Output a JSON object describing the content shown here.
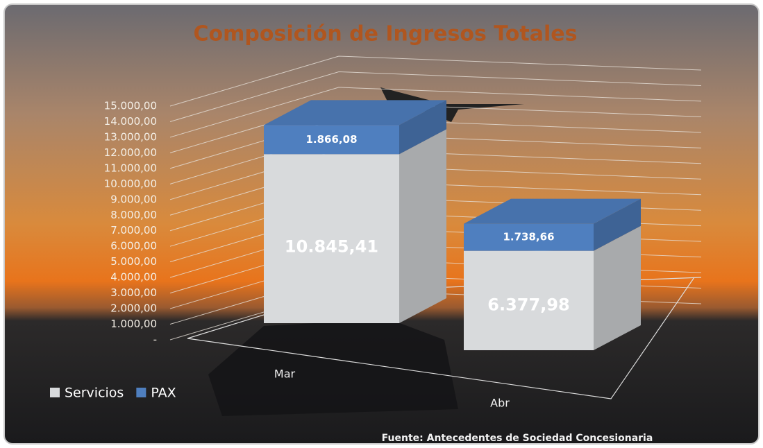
{
  "chart_data": {
    "type": "bar",
    "stacked": true,
    "title": "Composición de Ingresos Totales",
    "source": "Fuente: Antecedentes de Sociedad Concesionaria",
    "categories": [
      "Mar",
      "Abr"
    ],
    "series": [
      {
        "name": "Servicios",
        "color": "#d8dadc",
        "values": [
          10845.41,
          6377.98
        ],
        "value_labels": [
          "10.845,41",
          "6.377,98"
        ]
      },
      {
        "name": "PAX",
        "color": "#4f7fbf",
        "values": [
          1866.08,
          1738.66
        ],
        "value_labels": [
          "1.866,08",
          "1.738,66"
        ]
      }
    ],
    "ylim": [
      0,
      15000
    ],
    "yticks": [
      {
        "value": 0,
        "label": "-"
      },
      {
        "value": 1000,
        "label": "1.000,00"
      },
      {
        "value": 2000,
        "label": "2.000,00"
      },
      {
        "value": 3000,
        "label": "3.000,00"
      },
      {
        "value": 4000,
        "label": "4.000,00"
      },
      {
        "value": 5000,
        "label": "5.000,00"
      },
      {
        "value": 6000,
        "label": "6.000,00"
      },
      {
        "value": 7000,
        "label": "7.000,00"
      },
      {
        "value": 8000,
        "label": "8.000,00"
      },
      {
        "value": 9000,
        "label": "9.000,00"
      },
      {
        "value": 10000,
        "label": "10.000,00"
      },
      {
        "value": 11000,
        "label": "11.000,00"
      },
      {
        "value": 12000,
        "label": "12.000,00"
      },
      {
        "value": 13000,
        "label": "13.000,00"
      },
      {
        "value": 14000,
        "label": "14.000,00"
      },
      {
        "value": 15000,
        "label": "15.000,00"
      }
    ],
    "grid": true,
    "legend": "bottom-left"
  }
}
